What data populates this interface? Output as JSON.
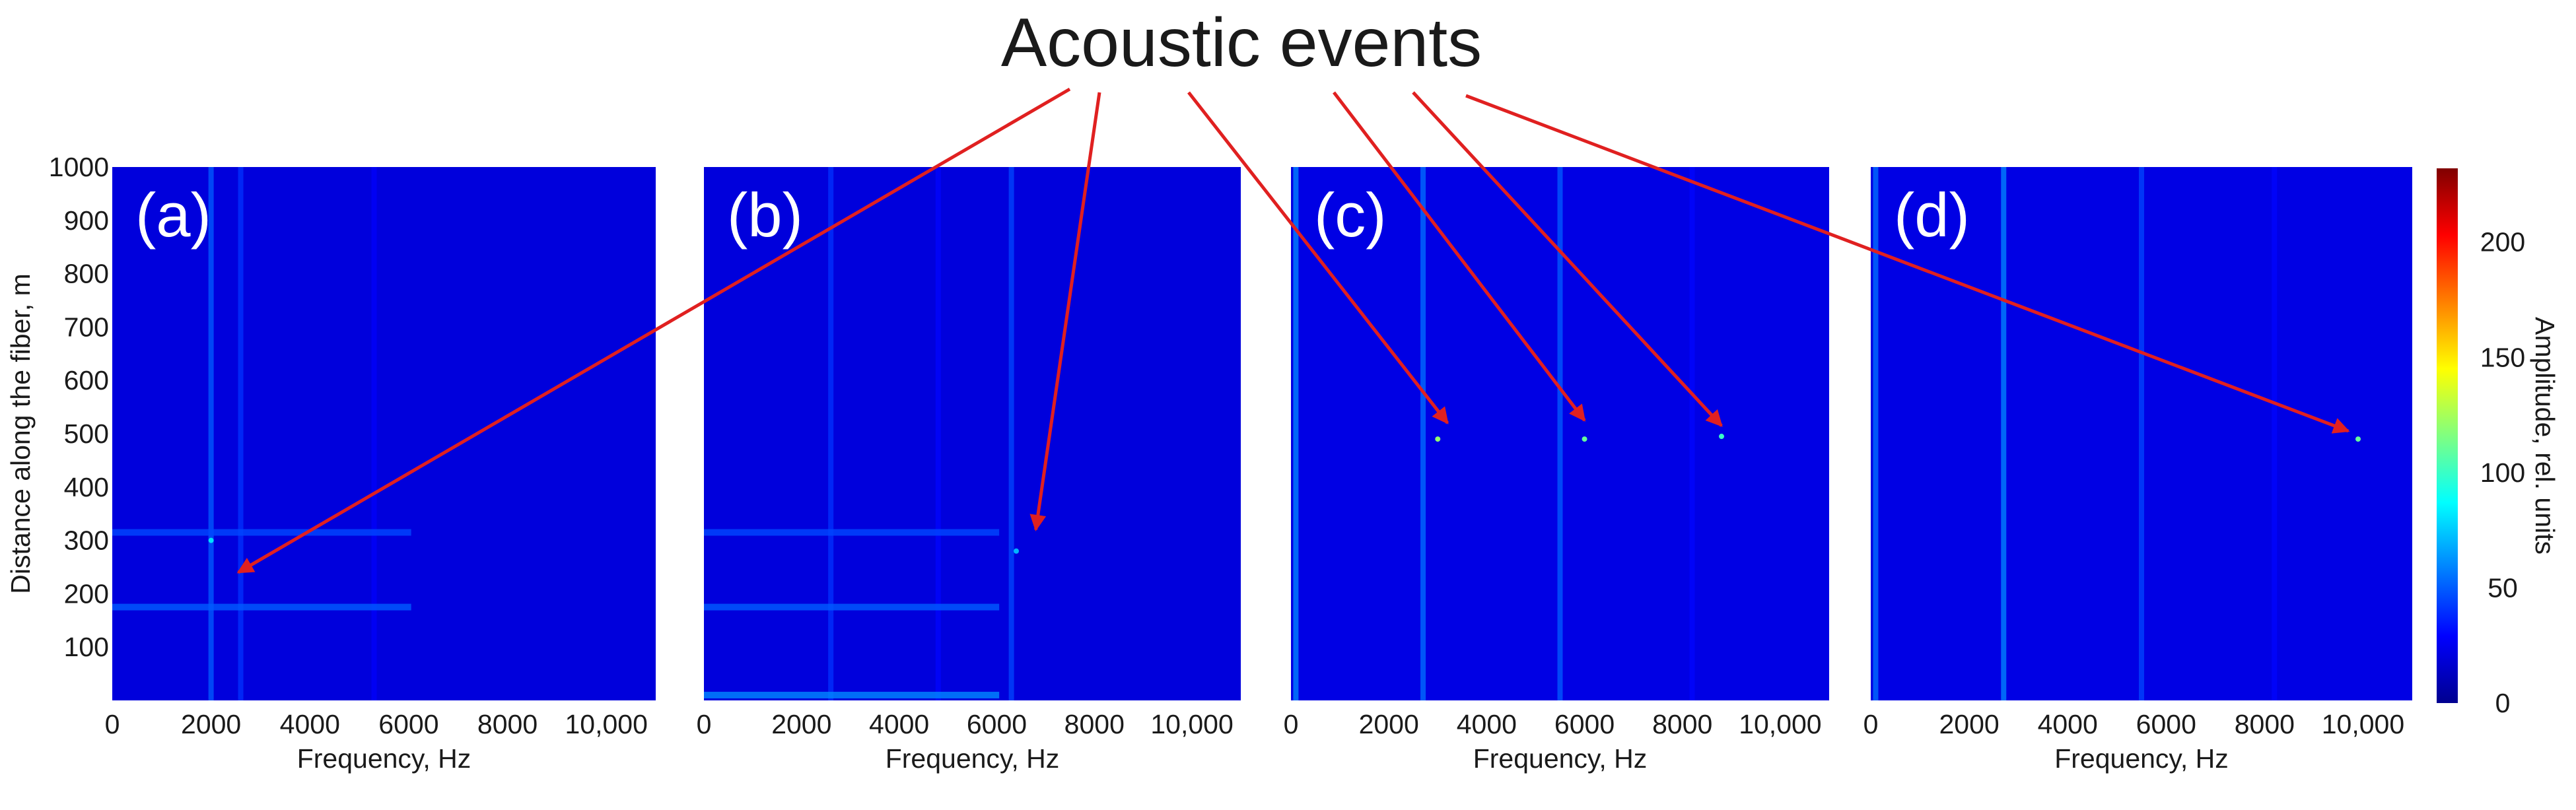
{
  "title": "Acoustic events",
  "colorbar": {
    "label": "Amplitude, rel. units",
    "ticks": [
      0,
      50,
      100,
      150,
      200
    ],
    "range": [
      0,
      232
    ],
    "colors": [
      "#00008f",
      "#0000ff",
      "#0080ff",
      "#00ffff",
      "#80ff80",
      "#ffff00",
      "#ff8000",
      "#ff0000",
      "#800000"
    ]
  },
  "chart_data": [
    {
      "type": "heatmap",
      "panel_label": "(a)",
      "xlabel": "Frequency, Hz",
      "ylabel": "Distance along the fiber, m",
      "xticks": [
        "0",
        "2000",
        "4000",
        "6000",
        "8000",
        "10,000"
      ],
      "yticks": [
        "100",
        "200",
        "300",
        "400",
        "500",
        "600",
        "700",
        "800",
        "900",
        "1000"
      ],
      "xlim": [
        0,
        11000
      ],
      "ylim": [
        0,
        1000
      ],
      "background_amplitude": 20,
      "vertical_lines": [
        {
          "x": 2000,
          "amp": 50
        },
        {
          "x": 2600,
          "amp": 40
        },
        {
          "x": 5300,
          "amp": 28
        }
      ],
      "horizontal_lines": [
        {
          "y": 315,
          "amp": 45
        },
        {
          "y": 175,
          "amp": 50
        }
      ],
      "events": [
        {
          "x": 2000,
          "y": 300,
          "amp": 80
        }
      ],
      "arrow_target": {
        "x": 2550,
        "y": 240
      }
    },
    {
      "type": "heatmap",
      "panel_label": "(b)",
      "xlabel": "Frequency, Hz",
      "ylabel": "",
      "xticks": [
        "0",
        "2000",
        "4000",
        "6000",
        "8000",
        "10,000"
      ],
      "yticks": [],
      "xlim": [
        0,
        11000
      ],
      "ylim": [
        0,
        1000
      ],
      "background_amplitude": 20,
      "vertical_lines": [
        {
          "x": 2600,
          "amp": 40
        },
        {
          "x": 4800,
          "amp": 30
        },
        {
          "x": 6300,
          "amp": 45
        }
      ],
      "horizontal_lines": [
        {
          "y": 315,
          "amp": 45
        },
        {
          "y": 175,
          "amp": 50
        },
        {
          "y": 10,
          "amp": 60
        }
      ],
      "events": [
        {
          "x": 6400,
          "y": 280,
          "amp": 70
        }
      ],
      "arrow_target": {
        "x": 6800,
        "y": 320
      }
    },
    {
      "type": "heatmap",
      "panel_label": "(c)",
      "xlabel": "Frequency, Hz",
      "ylabel": "",
      "xticks": [
        "0",
        "2000",
        "4000",
        "6000",
        "8000",
        "10,000"
      ],
      "yticks": [],
      "xlim": [
        0,
        11000
      ],
      "ylim": [
        0,
        1000
      ],
      "background_amplitude": 22,
      "vertical_lines": [
        {
          "x": 100,
          "amp": 60
        },
        {
          "x": 2700,
          "amp": 55
        },
        {
          "x": 5500,
          "amp": 50
        },
        {
          "x": 8200,
          "amp": 30
        }
      ],
      "horizontal_lines": [],
      "events": [
        {
          "x": 3000,
          "y": 490,
          "amp": 120
        },
        {
          "x": 6000,
          "y": 490,
          "amp": 110
        },
        {
          "x": 8800,
          "y": 495,
          "amp": 100
        }
      ],
      "arrow_target": [
        {
          "x": 3200,
          "y": 520
        },
        {
          "x": 6000,
          "y": 525
        },
        {
          "x": 8800,
          "y": 515
        }
      ]
    },
    {
      "type": "heatmap",
      "panel_label": "(d)",
      "xlabel": "Frequency, Hz",
      "ylabel": "",
      "xticks": [
        "0",
        "2000",
        "4000",
        "6000",
        "8000",
        "10,000"
      ],
      "yticks": [],
      "xlim": [
        0,
        11000
      ],
      "ylim": [
        0,
        1000
      ],
      "background_amplitude": 22,
      "vertical_lines": [
        {
          "x": 100,
          "amp": 55
        },
        {
          "x": 2700,
          "amp": 60
        },
        {
          "x": 5500,
          "amp": 45
        },
        {
          "x": 8200,
          "amp": 30
        }
      ],
      "horizontal_lines": [],
      "events": [
        {
          "x": 9900,
          "y": 490,
          "amp": 110
        }
      ],
      "arrow_target": {
        "x": 9700,
        "y": 505
      }
    }
  ]
}
